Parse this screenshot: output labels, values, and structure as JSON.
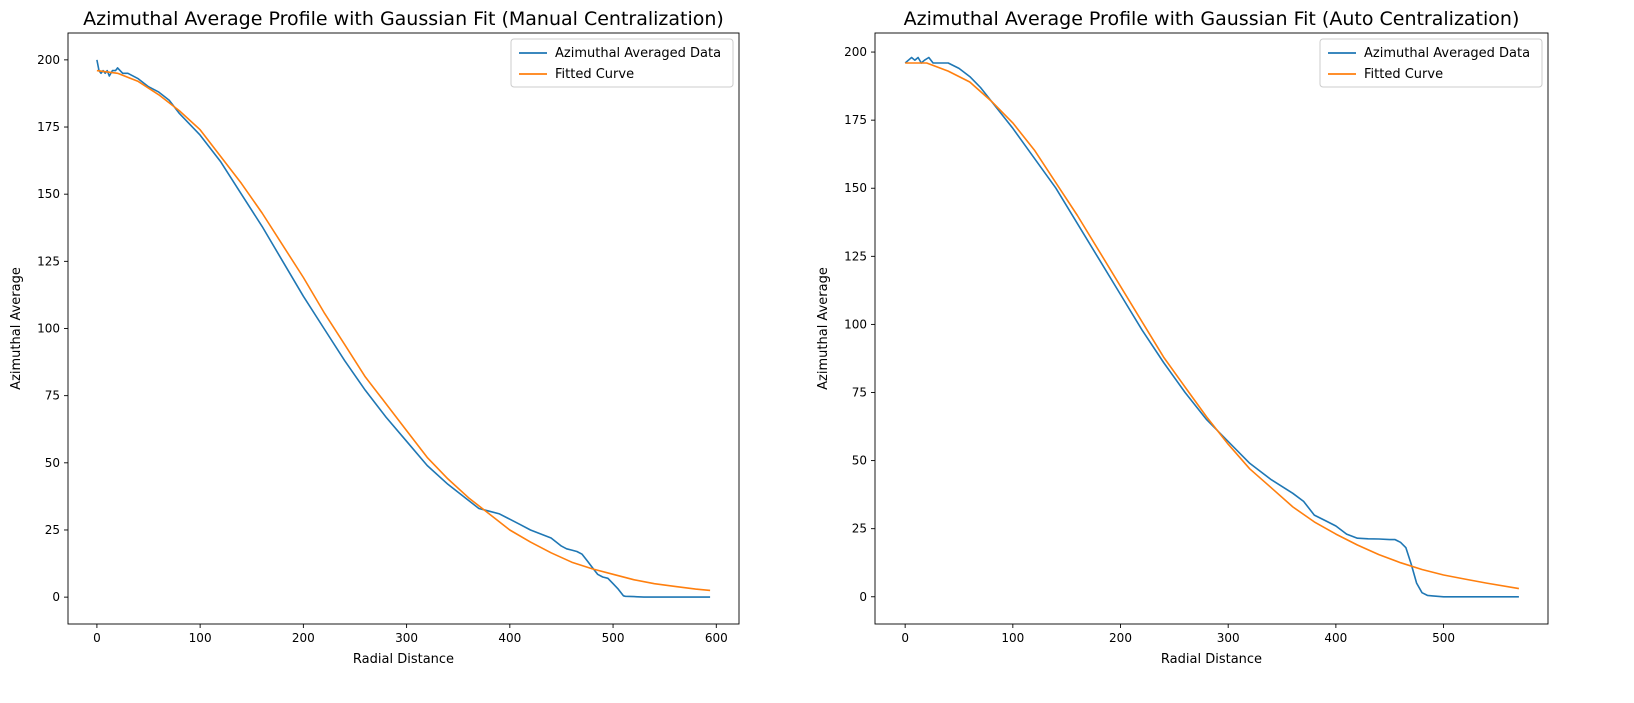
{
  "chart_data": [
    {
      "type": "line",
      "title": "Azimuthal Average Profile with Gaussian Fit (Manual Centralization)",
      "xlabel": "Radial Distance",
      "ylabel": "Azimuthal Average",
      "xlim": [
        -28,
        622
      ],
      "ylim": [
        -10,
        210
      ],
      "xticks": [
        0,
        100,
        200,
        300,
        400,
        500,
        600
      ],
      "yticks": [
        0,
        25,
        50,
        75,
        100,
        125,
        150,
        175,
        200
      ],
      "grid": false,
      "legend_position": "top-right",
      "series": [
        {
          "name": "Azimuthal Averaged Data",
          "color": "#1f77b4",
          "x": [
            0,
            2,
            4,
            6,
            8,
            10,
            12,
            15,
            18,
            20,
            25,
            30,
            40,
            50,
            60,
            70,
            80,
            90,
            100,
            120,
            140,
            160,
            180,
            200,
            220,
            240,
            260,
            280,
            300,
            320,
            340,
            360,
            370,
            380,
            390,
            400,
            410,
            420,
            430,
            440,
            450,
            455,
            460,
            465,
            470,
            475,
            480,
            485,
            490,
            495,
            500,
            505,
            510,
            512,
            520,
            530,
            550,
            570,
            594
          ],
          "y": [
            200,
            196,
            195,
            196,
            195,
            196,
            194,
            196,
            196,
            197,
            195,
            195,
            193,
            190,
            188,
            185,
            180,
            176,
            172,
            162,
            150,
            138,
            125,
            112,
            100,
            88,
            77,
            67,
            58,
            49,
            42,
            36,
            33,
            32,
            31,
            29,
            27,
            25,
            23.5,
            22,
            19,
            18,
            17.5,
            17,
            16,
            13.5,
            11,
            8.5,
            7.5,
            7,
            5,
            3,
            0.5,
            0.3,
            0.2,
            0,
            0,
            0,
            0
          ]
        },
        {
          "name": "Fitted Curve",
          "color": "#ff7f0e",
          "x": [
            0,
            20,
            40,
            60,
            80,
            100,
            120,
            140,
            160,
            180,
            200,
            220,
            240,
            260,
            280,
            300,
            320,
            340,
            360,
            380,
            400,
            420,
            440,
            460,
            480,
            500,
            520,
            540,
            560,
            580,
            594
          ],
          "y": [
            196,
            195,
            192,
            187,
            181,
            174,
            164,
            154,
            143,
            131,
            119,
            106,
            94,
            82,
            72,
            62,
            52,
            44,
            37,
            31,
            25,
            20.5,
            16.5,
            13,
            10.5,
            8.5,
            6.5,
            5,
            4,
            3,
            2.5
          ]
        }
      ]
    },
    {
      "type": "line",
      "title": "Azimuthal Average Profile with Gaussian Fit (Auto Centralization)",
      "xlabel": "Radial Distance",
      "ylabel": "Azimuthal Average",
      "xlim": [
        -28,
        597
      ],
      "ylim": [
        -10,
        207
      ],
      "xticks": [
        0,
        100,
        200,
        300,
        400,
        500
      ],
      "yticks": [
        0,
        25,
        50,
        75,
        100,
        125,
        150,
        175,
        200
      ],
      "grid": false,
      "legend_position": "top-right",
      "series": [
        {
          "name": "Azimuthal Averaged Data",
          "color": "#1f77b4",
          "x": [
            0,
            3,
            6,
            9,
            12,
            15,
            18,
            22,
            26,
            30,
            40,
            50,
            60,
            70,
            80,
            90,
            100,
            120,
            140,
            160,
            180,
            200,
            220,
            240,
            260,
            280,
            300,
            320,
            340,
            360,
            370,
            380,
            390,
            400,
            410,
            420,
            430,
            440,
            450,
            455,
            460,
            465,
            470,
            475,
            480,
            485,
            490,
            500,
            520,
            540,
            570
          ],
          "y": [
            196,
            197,
            198,
            197,
            198,
            196,
            197,
            198,
            196,
            196,
            196,
            194,
            191,
            187,
            182,
            177,
            172,
            161,
            150,
            137,
            124,
            111,
            98,
            86,
            75,
            65,
            57,
            49,
            43,
            38,
            35,
            30,
            28,
            26,
            23,
            21.5,
            21.3,
            21.2,
            21,
            21,
            20,
            18,
            12,
            5,
            1.5,
            0.5,
            0.3,
            0,
            0,
            0,
            0
          ]
        },
        {
          "name": "Fitted Curve",
          "color": "#ff7f0e",
          "x": [
            0,
            20,
            40,
            60,
            80,
            100,
            120,
            140,
            160,
            180,
            200,
            220,
            240,
            260,
            280,
            300,
            320,
            340,
            360,
            380,
            400,
            420,
            440,
            460,
            480,
            500,
            520,
            540,
            570
          ],
          "y": [
            196,
            196,
            193,
            189,
            182,
            174,
            164,
            152,
            140,
            127,
            114,
            101,
            88,
            77,
            66,
            56,
            47,
            40,
            33,
            27.5,
            23,
            19,
            15.5,
            12.5,
            10,
            8,
            6.5,
            5,
            3
          ]
        }
      ]
    }
  ]
}
